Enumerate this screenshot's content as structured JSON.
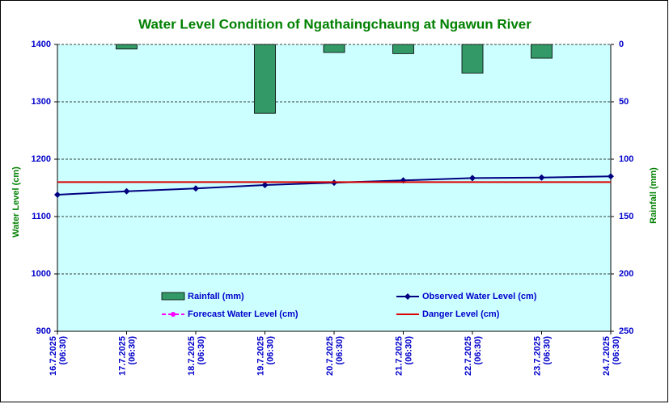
{
  "chart_data": {
    "type": "combo",
    "title": "Water Level Condition of  Ngathaingchaung at Ngawun River",
    "ylabel": "Water Level (cm)",
    "y2label": "Rainfall (mm)",
    "categories": [
      [
        "16.7.2025",
        "(06:30)"
      ],
      [
        "17.7.2025",
        "(06:30)"
      ],
      [
        "18.7.2025",
        "(06:30)"
      ],
      [
        "19.7.2025",
        "(06:30)"
      ],
      [
        "20.7.2025",
        "(06:30)"
      ],
      [
        "21.7.2025",
        "(06:30)"
      ],
      [
        "22.7.2025",
        "(06:30)"
      ],
      [
        "23.7.2025",
        "(06:30)"
      ],
      [
        "24.7.2025",
        "(06:30)"
      ]
    ],
    "ylim": [
      900,
      1400
    ],
    "yticks": [
      900,
      1000,
      1100,
      1200,
      1300,
      1400
    ],
    "y2lim": [
      0,
      250
    ],
    "y2ticks": [
      0,
      50,
      100,
      150,
      200,
      250
    ],
    "y2_inverted": true,
    "grid": true,
    "series": [
      {
        "name": "Rainfall (mm)",
        "type": "bar",
        "axis": "y2",
        "color": "#339966",
        "values": [
          0,
          4,
          0,
          60,
          7,
          8,
          25,
          12,
          0
        ]
      },
      {
        "name": "Observed Water Level (cm)",
        "type": "line",
        "color": "#000080",
        "marker": "diamond",
        "values": [
          1138,
          1144,
          1149,
          1155,
          1159,
          1163,
          1167,
          1168,
          1170
        ]
      },
      {
        "name": "Forecast Water Level (cm)",
        "type": "line",
        "color": "#ff00ff",
        "dashed": true,
        "marker": "circle",
        "values": [
          null,
          null,
          null,
          null,
          null,
          null,
          null,
          null,
          null
        ]
      },
      {
        "name": "Danger Level (cm)",
        "type": "line",
        "color": "#dd0000",
        "values": [
          1160,
          1160,
          1160,
          1160,
          1160,
          1160,
          1160,
          1160,
          1160
        ]
      }
    ]
  }
}
